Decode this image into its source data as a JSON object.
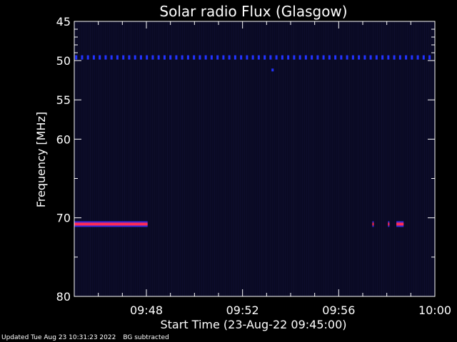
{
  "chart_data": {
    "type": "heatmap",
    "title": "Solar radio Flux (Glasgow)",
    "xlabel": "Start Time (23-Aug-22 09:45:00)",
    "ylabel": "Frequency [MHz]",
    "x_range_minutes": [
      0,
      15
    ],
    "x_ticks": [
      {
        "label": "09:48",
        "minute": 3
      },
      {
        "label": "09:52",
        "minute": 7
      },
      {
        "label": "09:56",
        "minute": 11
      },
      {
        "label": "10:00",
        "minute": 15
      }
    ],
    "ylim": [
      45,
      80
    ],
    "y_ticks": [
      45,
      50,
      55,
      60,
      70,
      80
    ],
    "y_inverted": true,
    "features": [
      {
        "kind": "periodic-dots",
        "frequency_mhz": 49.6,
        "color": "#2233ff",
        "spacing_minutes": 0.245
      },
      {
        "kind": "dot",
        "frequency_mhz": 51.2,
        "minute": 8.25,
        "color": "#2233ff"
      },
      {
        "kind": "band",
        "frequency_mhz": 70.8,
        "from_minute": 0,
        "to_minute": 3.05,
        "color": "#ff2a55"
      },
      {
        "kind": "band",
        "frequency_mhz": 70.8,
        "from_minute": 12.4,
        "to_minute": 12.45,
        "color": "#ff2a55"
      },
      {
        "kind": "band",
        "frequency_mhz": 70.8,
        "from_minute": 13.05,
        "to_minute": 13.1,
        "color": "#ff2a55"
      },
      {
        "kind": "band",
        "frequency_mhz": 70.8,
        "from_minute": 13.4,
        "to_minute": 13.7,
        "color": "#ff2a55"
      }
    ],
    "background_color": "#0a0a24",
    "axis_color": "#ffffff"
  },
  "footer": {
    "updated": "Updated Tue Aug 23 10:31:23 2022",
    "note": "BG subtracted"
  }
}
